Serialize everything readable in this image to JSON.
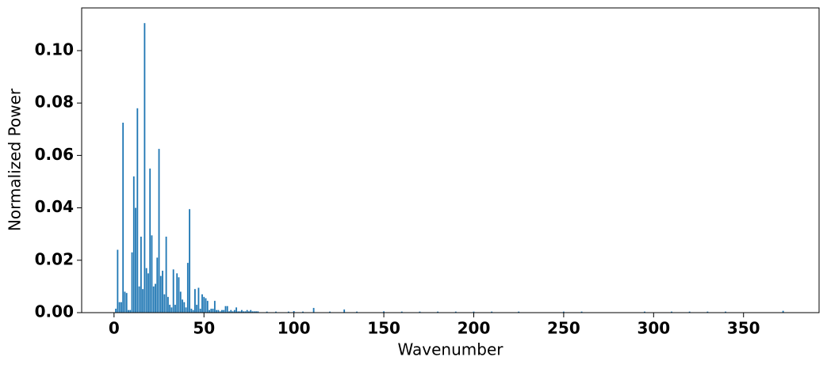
{
  "chart_data": {
    "type": "bar",
    "xlabel": "Wavenumber",
    "ylabel": "Normalized Power",
    "color": "#1f77b4",
    "x": [
      1,
      2,
      3,
      4,
      5,
      6,
      7,
      8,
      9,
      10,
      11,
      12,
      13,
      14,
      15,
      16,
      17,
      18,
      19,
      20,
      21,
      22,
      23,
      24,
      25,
      26,
      27,
      28,
      29,
      30,
      31,
      32,
      33,
      34,
      35,
      36,
      37,
      38,
      39,
      40,
      41,
      42,
      43,
      44,
      45,
      46,
      47,
      48,
      49,
      50,
      51,
      52,
      53,
      54,
      55,
      56,
      57,
      58,
      59,
      60,
      61,
      62,
      63,
      64,
      65,
      66,
      67,
      68,
      69,
      70,
      71,
      72,
      73,
      74,
      75,
      76,
      77,
      78,
      79,
      80,
      85,
      90,
      97,
      100,
      105,
      111,
      120,
      128,
      135,
      150,
      160,
      170,
      180,
      190,
      200,
      210,
      225,
      250,
      260,
      295,
      310,
      320,
      330,
      340,
      372
    ],
    "values": [
      0.0015,
      0.024,
      0.004,
      0.004,
      0.0725,
      0.008,
      0.0075,
      0.001,
      0.001,
      0.023,
      0.052,
      0.04,
      0.078,
      0.01,
      0.029,
      0.009,
      0.1105,
      0.017,
      0.015,
      0.055,
      0.0295,
      0.01,
      0.011,
      0.021,
      0.0625,
      0.014,
      0.016,
      0.007,
      0.029,
      0.006,
      0.003,
      0.002,
      0.0165,
      0.003,
      0.015,
      0.0135,
      0.008,
      0.005,
      0.004,
      0.002,
      0.019,
      0.0395,
      0.0015,
      0.001,
      0.009,
      0.003,
      0.0095,
      0.0015,
      0.007,
      0.006,
      0.0055,
      0.0045,
      0.001,
      0.0015,
      0.0015,
      0.0045,
      0.001,
      0.001,
      0.0005,
      0.001,
      0.001,
      0.0025,
      0.0025,
      0.0005,
      0.001,
      0.0005,
      0.001,
      0.002,
      0.0005,
      0.0005,
      0.001,
      0.0005,
      0.0005,
      0.001,
      0.0005,
      0.001,
      0.0005,
      0.0005,
      0.0005,
      0.0005,
      0.0004,
      0.0004,
      0.0004,
      0.0006,
      0.0004,
      0.0018,
      0.0004,
      0.0012,
      0.0004,
      0.0005,
      0.0004,
      0.0004,
      0.0004,
      0.0004,
      0.0004,
      0.0004,
      0.0004,
      0.0004,
      0.0004,
      0.0004,
      0.0004,
      0.0004,
      0.0004,
      0.0004,
      0.0007
    ],
    "xlim": [
      -18,
      392
    ],
    "ylim": [
      0,
      0.1163
    ],
    "xticks": [
      0,
      50,
      100,
      150,
      200,
      250,
      300,
      350
    ],
    "yticks": [
      {
        "value": 0,
        "label": "0.00"
      },
      {
        "value": 0.02,
        "label": "0.02"
      },
      {
        "value": 0.04,
        "label": "0.04"
      },
      {
        "value": 0.06,
        "label": "0.06"
      },
      {
        "value": 0.08,
        "label": "0.08"
      },
      {
        "value": 0.1,
        "label": "0.10"
      }
    ]
  }
}
